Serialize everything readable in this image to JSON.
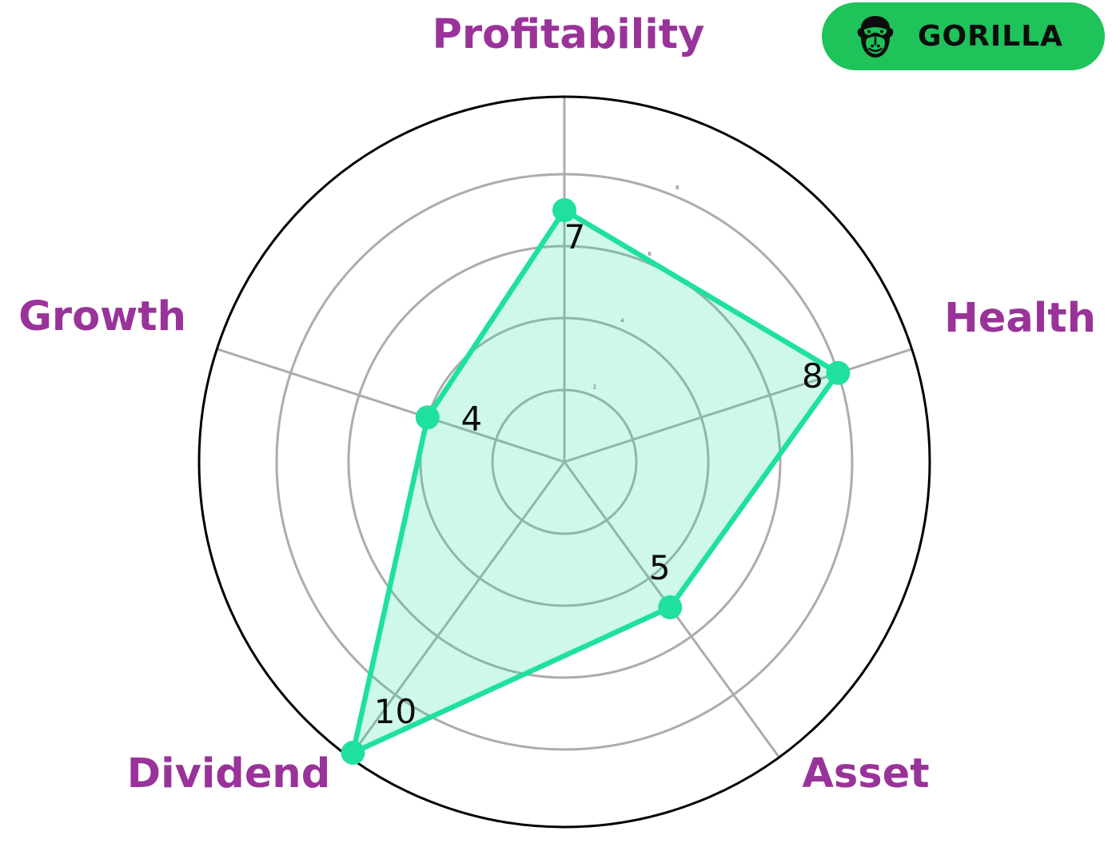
{
  "badge": {
    "label": "GORILLA",
    "icon": "gorilla-icon",
    "bg_color": "#1EC35A",
    "text_color": "#0d0d0d"
  },
  "chart_data": {
    "type": "radar",
    "categories": [
      "Profitability",
      "Health",
      "Asset",
      "Dividend",
      "Growth"
    ],
    "values": [
      7,
      8,
      5,
      10,
      4
    ],
    "rmax": 10,
    "ring_ticks": [
      2,
      4,
      6,
      8
    ],
    "start_angle_deg": 90,
    "direction": "clockwise",
    "grid": true,
    "legend": false,
    "title": "",
    "line_color": "#1FE0A0",
    "fill_color": "rgba(31,224,160,0.22)",
    "marker_color": "#1FE0A0",
    "grid_color": "#ACACAC",
    "outer_ring_color": "#000000",
    "category_label_color": "#993399",
    "value_label_color": "#0d0d0d",
    "tick_label_color": "#555555"
  }
}
